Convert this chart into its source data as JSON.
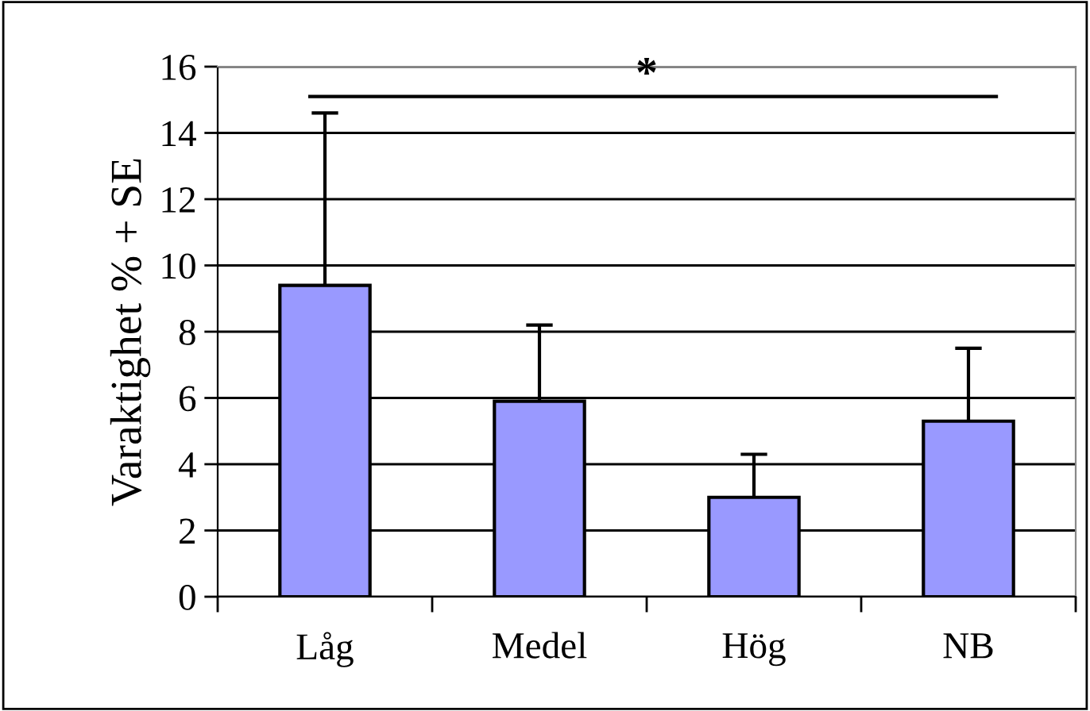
{
  "chart_data": {
    "type": "bar",
    "ylabel": "Varaktighet % + SE",
    "categories": [
      "Låg",
      "Medel",
      "Hög",
      "NB"
    ],
    "values": [
      9.4,
      5.9,
      3.0,
      5.3
    ],
    "errors": [
      [
        9.4,
        14.6
      ],
      [
        5.9,
        8.2
      ],
      [
        3.0,
        4.3
      ],
      [
        5.3,
        7.5
      ]
    ],
    "color": "#9999ff",
    "ylim": [
      0,
      16
    ],
    "yticks": [
      0,
      2,
      4,
      6,
      8,
      10,
      12,
      14,
      16
    ],
    "grid": "y",
    "annotations": [
      "*"
    ]
  }
}
